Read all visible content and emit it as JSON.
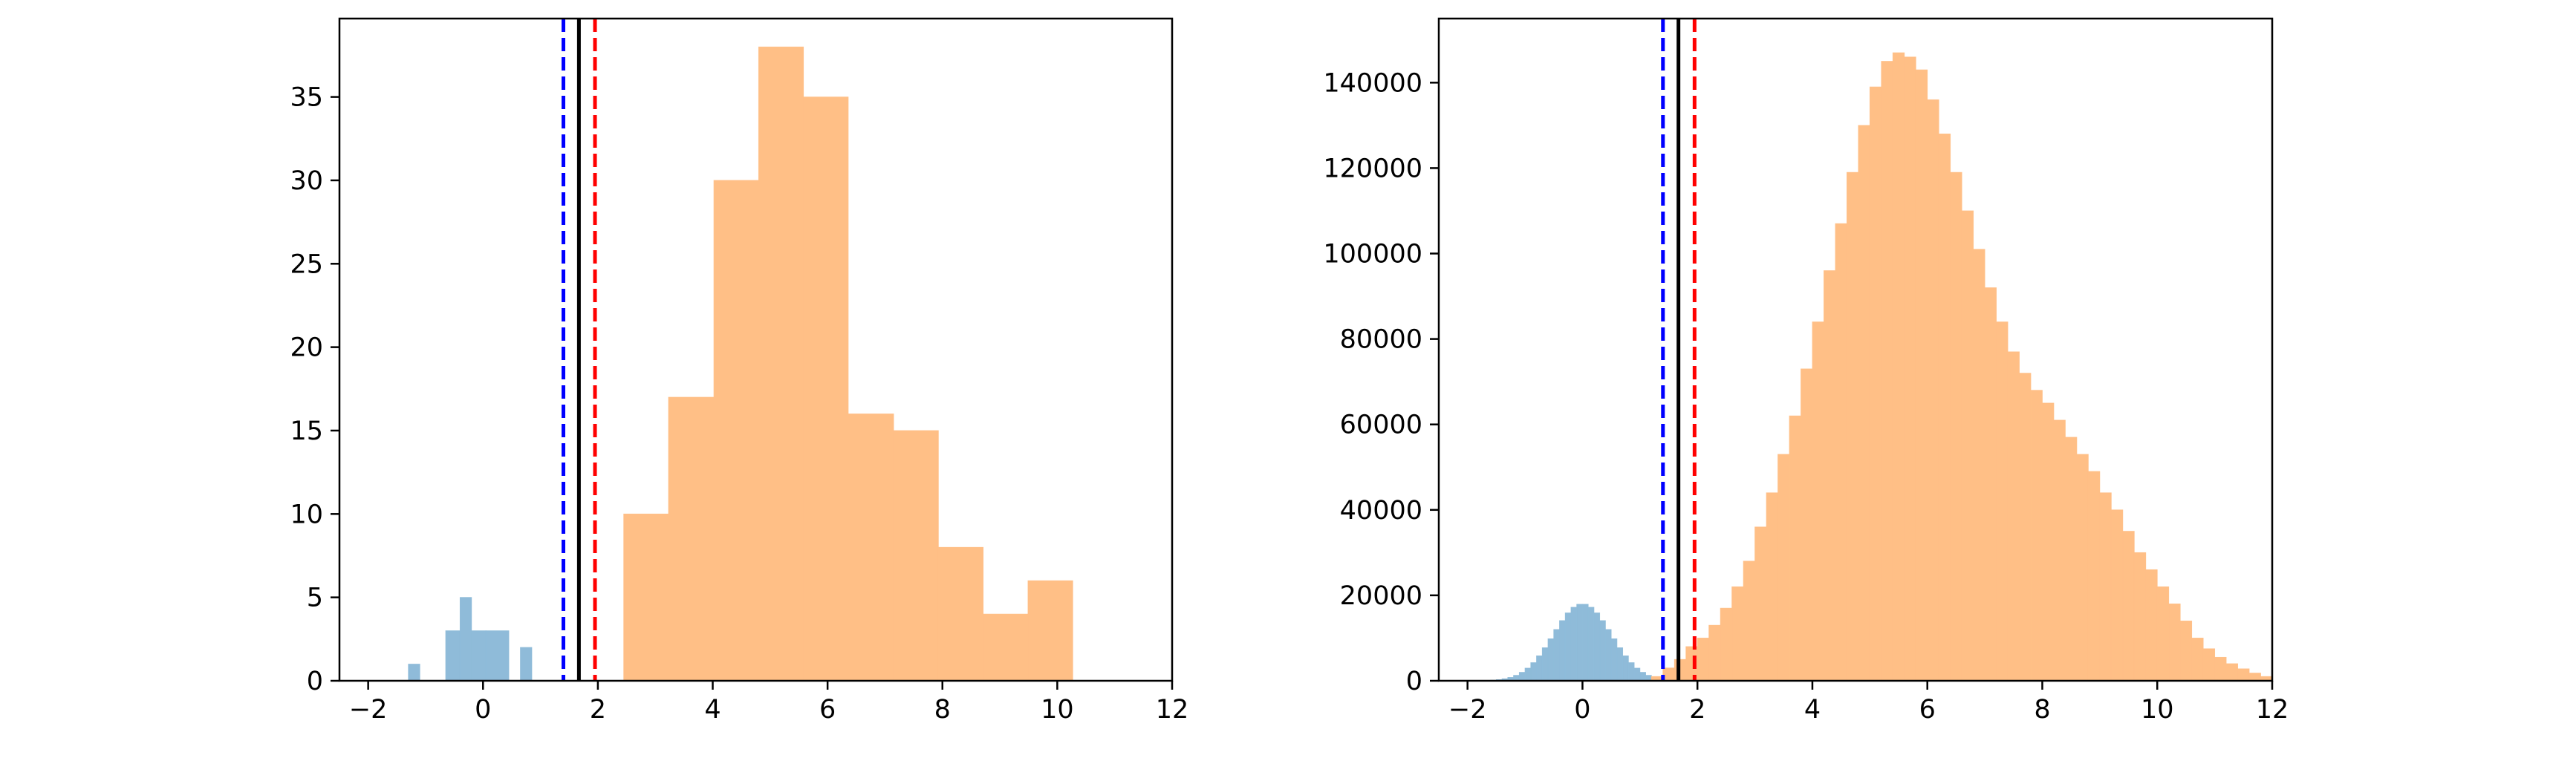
{
  "colors": {
    "blue_hist": "#8fbbd9",
    "orange_hist": "#ffbf86",
    "blue_line": "#0000ff",
    "red_line": "#ff0000",
    "black_line": "#000000"
  },
  "chart_data": [
    {
      "type": "bar",
      "title": "",
      "xlabel": "",
      "ylabel": "",
      "xlim": [
        -2.5,
        12
      ],
      "ylim": [
        0,
        39.7
      ],
      "xticks": [
        -2,
        0,
        2,
        4,
        6,
        8,
        10,
        12
      ],
      "yticks": [
        0,
        5,
        10,
        15,
        20,
        25,
        30,
        35
      ],
      "xtick_labels": [
        "−2",
        "0",
        "2",
        "4",
        "6",
        "8",
        "10",
        "12"
      ],
      "ytick_labels": [
        "0",
        "5",
        "10",
        "15",
        "20",
        "25",
        "30",
        "35"
      ],
      "grid": false,
      "series": [
        {
          "color": "#8fbbd9",
          "bin_edges": [
            -1.3,
            -1.1,
            -0.9,
            -0.65,
            -0.4,
            -0.2,
            0.05,
            0.45,
            0.65,
            0.85
          ],
          "counts": [
            1,
            0,
            0,
            3,
            5,
            3,
            3,
            0,
            2
          ]
        },
        {
          "color": "#ffbf86",
          "bin_edges": [
            2.45,
            3.23,
            4.02,
            4.8,
            5.58,
            6.36,
            7.15,
            7.93,
            8.71,
            9.49,
            10.27
          ],
          "counts": [
            10,
            17,
            30,
            38,
            35,
            16,
            15,
            8,
            4,
            6
          ]
        }
      ],
      "vlines": [
        {
          "x": 1.4,
          "color": "#0000ff",
          "style": "dashed"
        },
        {
          "x": 1.67,
          "color": "#000000",
          "style": "solid"
        },
        {
          "x": 1.95,
          "color": "#ff0000",
          "style": "dashed"
        }
      ]
    },
    {
      "type": "bar",
      "title": "",
      "xlabel": "",
      "ylabel": "",
      "xlim": [
        -2.5,
        12
      ],
      "ylim": [
        0,
        155000
      ],
      "xticks": [
        -2,
        0,
        2,
        4,
        6,
        8,
        10,
        12
      ],
      "yticks": [
        0,
        20000,
        40000,
        60000,
        80000,
        100000,
        120000,
        140000
      ],
      "xtick_labels": [
        "−2",
        "0",
        "2",
        "4",
        "6",
        "8",
        "10",
        "12"
      ],
      "ytick_labels": [
        "0",
        "20000",
        "40000",
        "60000",
        "80000",
        "100000",
        "120000",
        "140000"
      ],
      "grid": false,
      "series": [
        {
          "color": "#8fbbd9",
          "distribution": "normal",
          "mean": 0,
          "sd": 0.5,
          "peak_count": 18000,
          "x_range": [
            -2,
            2
          ],
          "bin_width": 0.1
        },
        {
          "color": "#ffbf86",
          "bin_width": 0.2,
          "bins": [
            [
              1.2,
              1000
            ],
            [
              1.4,
              3000
            ],
            [
              1.6,
              5000
            ],
            [
              1.8,
              8000
            ],
            [
              2.0,
              10000
            ],
            [
              2.2,
              13000
            ],
            [
              2.4,
              17000
            ],
            [
              2.6,
              22000
            ],
            [
              2.8,
              28000
            ],
            [
              3.0,
              36000
            ],
            [
              3.2,
              44000
            ],
            [
              3.4,
              53000
            ],
            [
              3.6,
              62000
            ],
            [
              3.8,
              73000
            ],
            [
              4.0,
              84000
            ],
            [
              4.2,
              96000
            ],
            [
              4.4,
              107000
            ],
            [
              4.6,
              119000
            ],
            [
              4.8,
              130000
            ],
            [
              5.0,
              139000
            ],
            [
              5.2,
              145000
            ],
            [
              5.4,
              147000
            ],
            [
              5.6,
              146000
            ],
            [
              5.8,
              143000
            ],
            [
              6.0,
              136000
            ],
            [
              6.2,
              128000
            ],
            [
              6.4,
              119000
            ],
            [
              6.6,
              110000
            ],
            [
              6.8,
              101000
            ],
            [
              7.0,
              92000
            ],
            [
              7.2,
              84000
            ],
            [
              7.4,
              77000
            ],
            [
              7.6,
              72000
            ],
            [
              7.8,
              68000
            ],
            [
              8.0,
              65000
            ],
            [
              8.2,
              61000
            ],
            [
              8.4,
              57000
            ],
            [
              8.6,
              53000
            ],
            [
              8.8,
              49000
            ],
            [
              9.0,
              44000
            ],
            [
              9.2,
              40000
            ],
            [
              9.4,
              35000
            ],
            [
              9.6,
              30000
            ],
            [
              9.8,
              26000
            ],
            [
              10.0,
              22000
            ],
            [
              10.2,
              18000
            ],
            [
              10.4,
              14000
            ],
            [
              10.6,
              10000
            ],
            [
              10.8,
              7500
            ],
            [
              11.0,
              5500
            ],
            [
              11.2,
              4000
            ],
            [
              11.4,
              2800
            ],
            [
              11.6,
              1800
            ],
            [
              11.8,
              1000
            ]
          ]
        }
      ],
      "vlines": [
        {
          "x": 1.4,
          "color": "#0000ff",
          "style": "dashed"
        },
        {
          "x": 1.67,
          "color": "#000000",
          "style": "solid"
        },
        {
          "x": 1.95,
          "color": "#ff0000",
          "style": "dashed"
        }
      ]
    }
  ]
}
